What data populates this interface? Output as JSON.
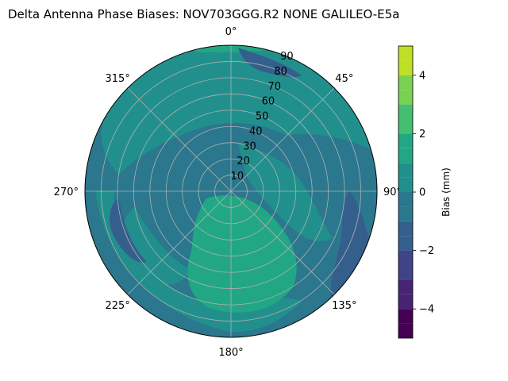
{
  "chart_data": {
    "type": "polar-contour",
    "title": "Delta Antenna Phase Biases: NOV703GGG.R2    NONE GALILEO-E5a",
    "theta_direction": "clockwise",
    "theta_zero": "top",
    "theta_tick_labels": [
      {
        "deg": 0,
        "label": "0°"
      },
      {
        "deg": 45,
        "label": "45°"
      },
      {
        "deg": 90,
        "label": "90°"
      },
      {
        "deg": 135,
        "label": "135°"
      },
      {
        "deg": 180,
        "label": "180°"
      },
      {
        "deg": 225,
        "label": "225°"
      },
      {
        "deg": 270,
        "label": "270°"
      },
      {
        "deg": 315,
        "label": "315°"
      }
    ],
    "r_ticks": [
      10,
      20,
      30,
      40,
      50,
      60,
      70,
      80,
      90
    ],
    "r_range": [
      0,
      90
    ],
    "grid": true,
    "colorbar": {
      "label": "Bias (mm)",
      "ticks": [
        -4,
        -2,
        0,
        2,
        4
      ],
      "levels": [
        -5,
        -4.5,
        -4,
        -3.5,
        -3,
        -2.5,
        -2,
        -1.5,
        -1,
        -0.5,
        0,
        0.5,
        1,
        1.5,
        2,
        2.5,
        3,
        3.5,
        4,
        4.5,
        5
      ],
      "colors": [
        "#440154",
        "#482374",
        "#404387",
        "#345f8d",
        "#2a778e",
        "#21908d",
        "#22a784",
        "#44be70",
        "#79d151",
        "#bddf26",
        "#fde725"
      ],
      "band_colors_used": [
        "#345f8d",
        "#2a778e",
        "#21908d",
        "#22a784"
      ]
    },
    "field_description": "predominantly teal (-0.5 to 0.5 mm) with bluer (-1 to -0.5 mm) bands and a green (0.5 to 1 mm) lobe near 135°-180° and at the outer edge"
  }
}
